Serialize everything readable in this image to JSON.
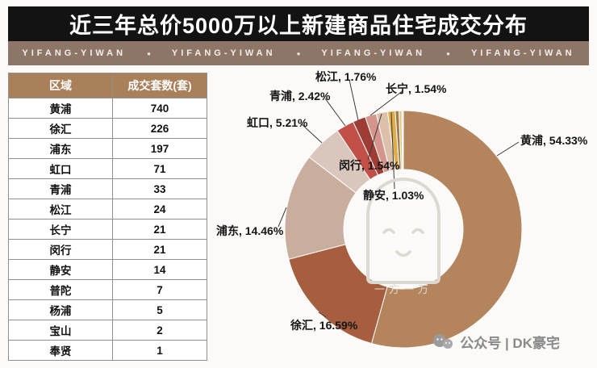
{
  "header": {
    "title": "近三年总价5000万以上新建商品住宅成交分布"
  },
  "banner": {
    "items": [
      "YIFANG-YIWAN",
      "YIFANG-YIWAN",
      "YIFANG-YIWAN",
      "YIFANG-YIWAN"
    ],
    "separator": "●",
    "bg_color": "#8d7668"
  },
  "table": {
    "headers": [
      "区域",
      "成交套数(套)"
    ],
    "header_bg": "#a9805a",
    "rows": [
      [
        "黄浦",
        "740"
      ],
      [
        "徐汇",
        "226"
      ],
      [
        "浦东",
        "197"
      ],
      [
        "虹口",
        "71"
      ],
      [
        "青浦",
        "33"
      ],
      [
        "松江",
        "24"
      ],
      [
        "长宁",
        "21"
      ],
      [
        "闵行",
        "21"
      ],
      [
        "静安",
        "14"
      ],
      [
        "普陀",
        "7"
      ],
      [
        "杨浦",
        "5"
      ],
      [
        "宝山",
        "2"
      ],
      [
        "奉贤",
        "1"
      ]
    ]
  },
  "chart_data": {
    "type": "pie",
    "donut": true,
    "title": "近三年总价5000万以上新建商品住宅成交分布",
    "legend_position": "none",
    "start_angle_deg": -90,
    "direction": "clockwise",
    "slices": [
      {
        "name": "黄浦",
        "value": 740,
        "pct": 54.33,
        "label": "黄浦, 54.33%",
        "color": "#B4855D"
      },
      {
        "name": "徐汇",
        "value": 226,
        "pct": 16.59,
        "label": "徐汇, 16.59%",
        "color": "#A65E3F"
      },
      {
        "name": "浦东",
        "value": 197,
        "pct": 14.46,
        "label": "浦东, 14.46%",
        "color": "#C9AD9D"
      },
      {
        "name": "虹口",
        "value": 71,
        "pct": 5.21,
        "label": "虹口, 5.21%",
        "color": "#D9C6BC"
      },
      {
        "name": "青浦",
        "value": 33,
        "pct": 2.42,
        "label": "青浦, 2.42%",
        "color": "#C24F48"
      },
      {
        "name": "松江",
        "value": 24,
        "pct": 1.76,
        "label": "松江, 1.76%",
        "color": "#9E3D36"
      },
      {
        "name": "长宁",
        "value": 21,
        "pct": 1.54,
        "label": "长宁, 1.54%",
        "color": "#D5948C"
      },
      {
        "name": "闵行",
        "value": 21,
        "pct": 1.54,
        "label": "闵行, 1.54%",
        "color": "#DCC0AC"
      },
      {
        "name": "静安",
        "value": 14,
        "pct": 1.03,
        "label": "静安, 1.03%",
        "color": "#DFAD4B"
      },
      {
        "name": "普陀",
        "value": 7,
        "pct": 0.51,
        "label": "",
        "color": "#A07C50"
      },
      {
        "name": "杨浦",
        "value": 5,
        "pct": 0.37,
        "label": "",
        "color": "#E2C673"
      },
      {
        "name": "宝山",
        "value": 2,
        "pct": 0.15,
        "label": "",
        "color": "#8F8F8F"
      },
      {
        "name": "奉贤",
        "value": 1,
        "pct": 0.07,
        "label": "",
        "color": "#C8C8C8"
      }
    ]
  },
  "watermark": {
    "text": "一方一万"
  },
  "footer": {
    "text": "公众号 | DK豪宅"
  }
}
